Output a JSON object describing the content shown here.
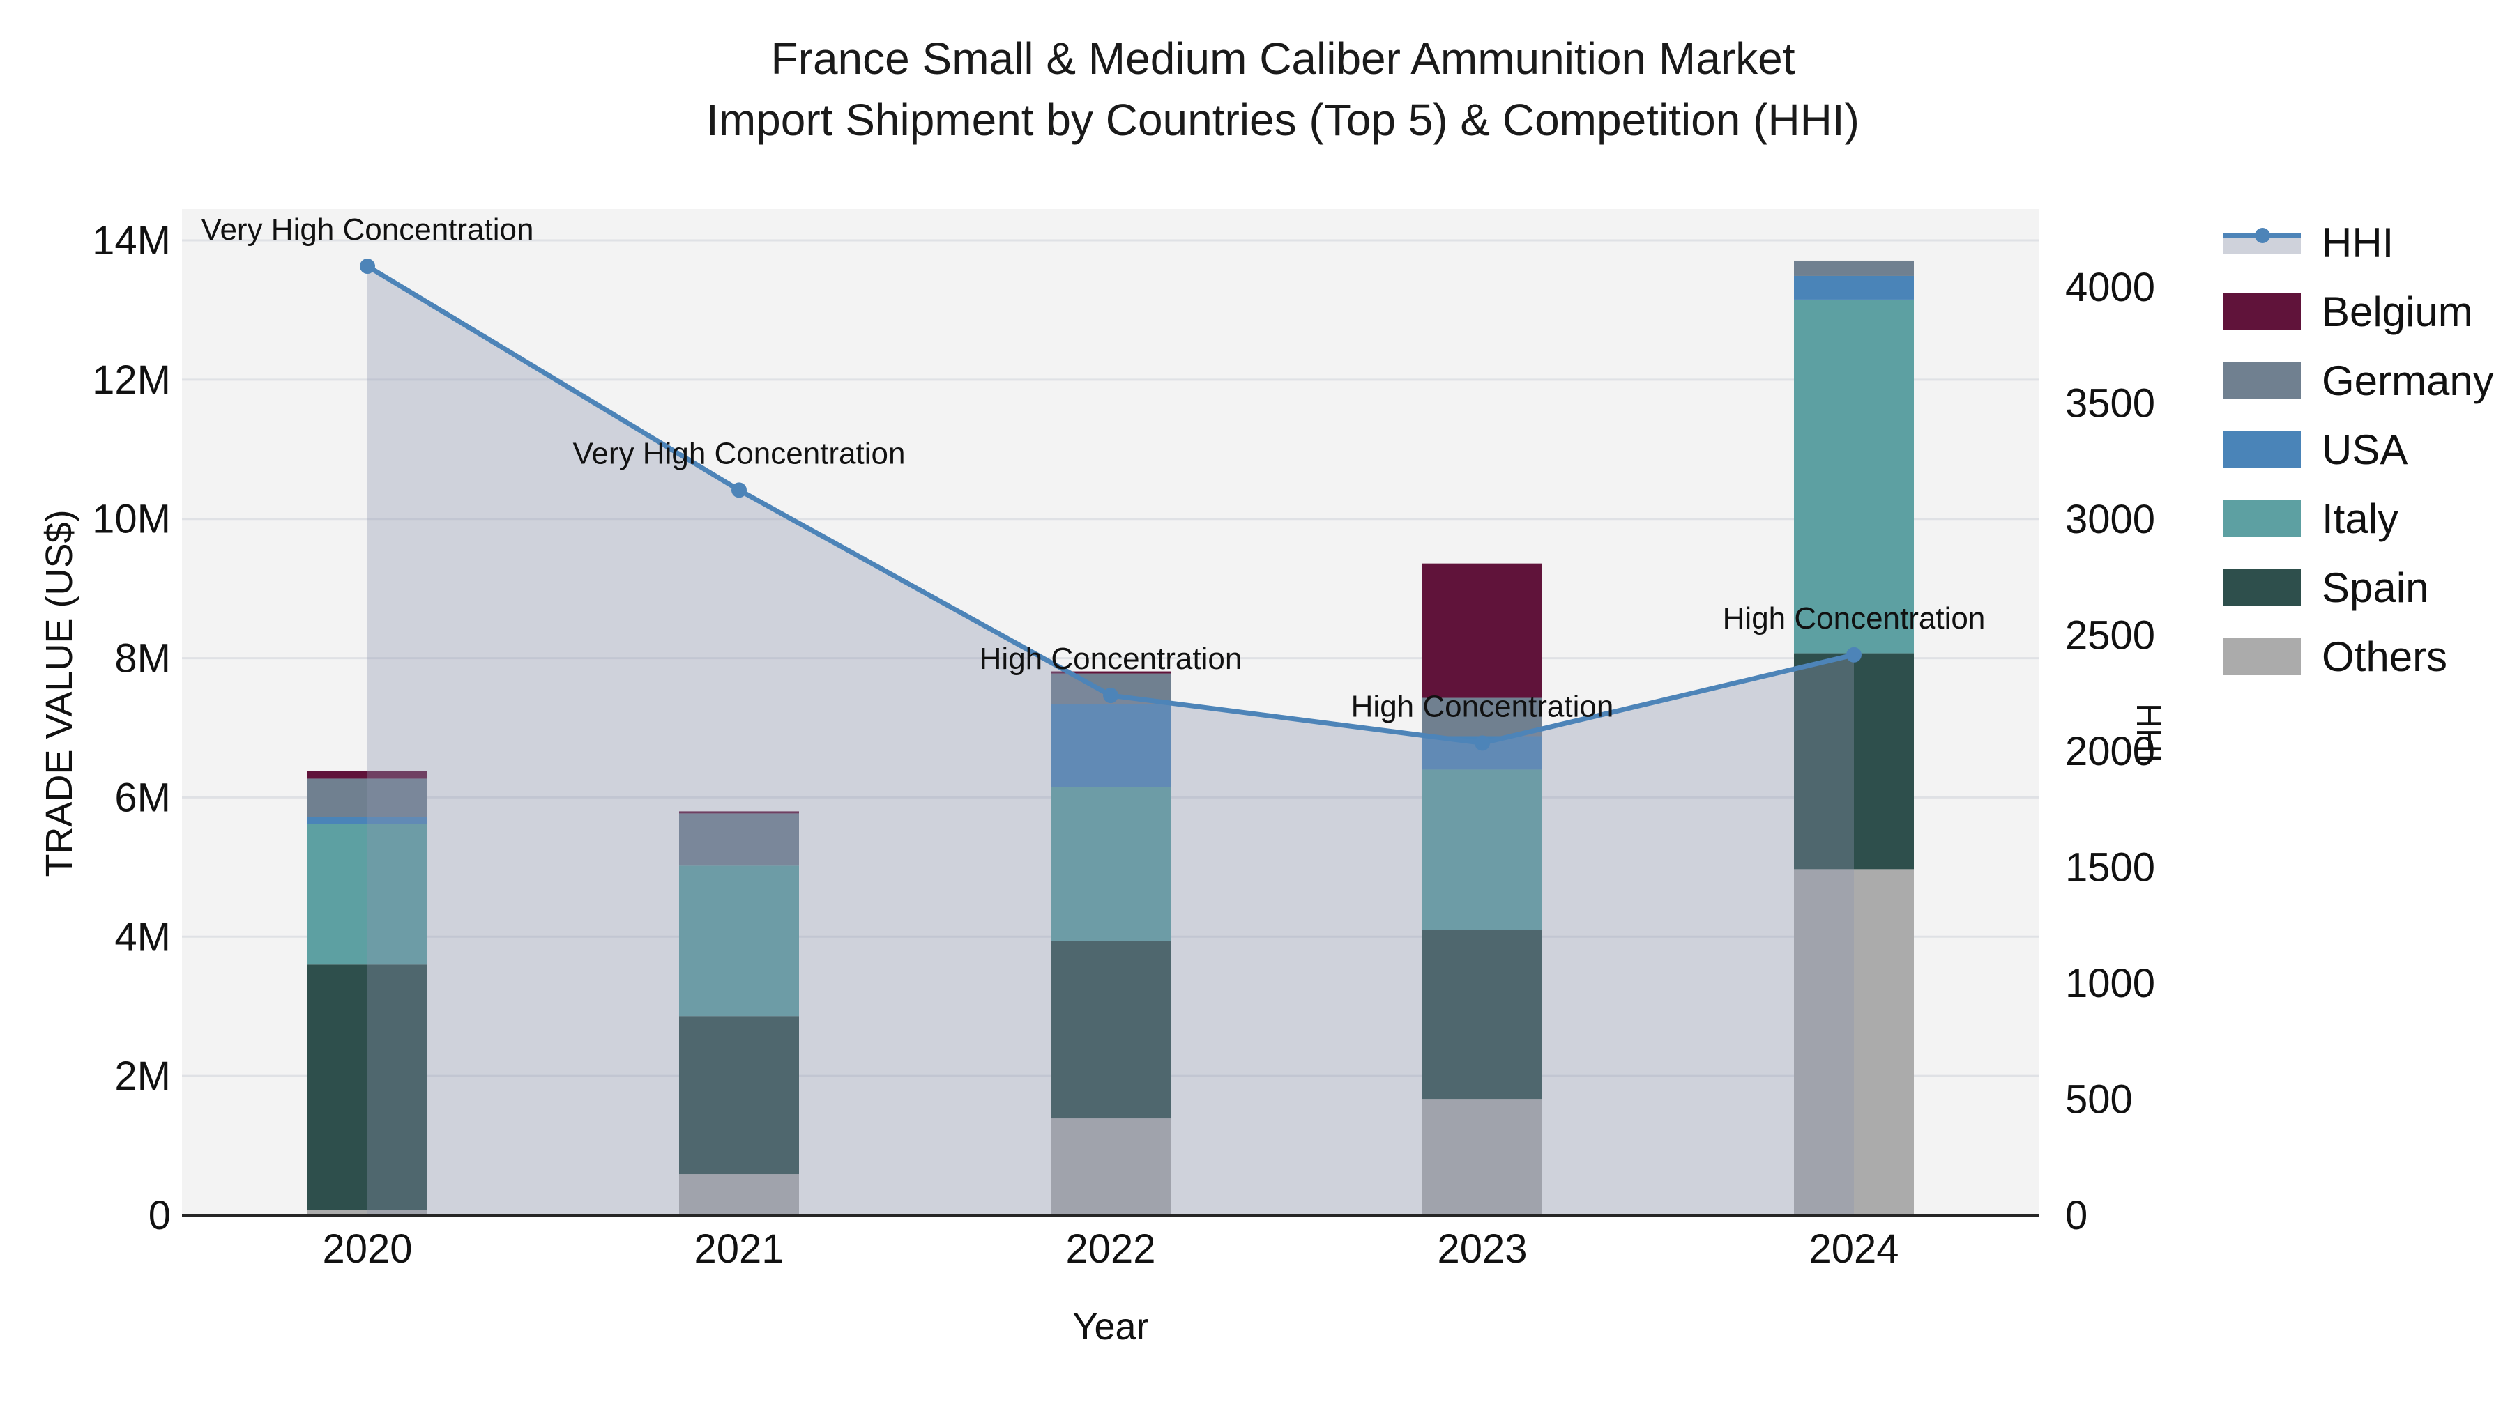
{
  "title": {
    "line1": "France Small & Medium Caliber Ammunition Market",
    "line2": "Import Shipment by Countries (Top 5) & Competition (HHI)"
  },
  "axes": {
    "x_title": "Year",
    "y_left_title": "TRADE VALUE (US$)",
    "y_right_title": "HHI",
    "y_left_ticks": [
      "0",
      "2M",
      "4M",
      "6M",
      "8M",
      "10M",
      "12M",
      "14M"
    ],
    "y_left_tick_values_millions": [
      0,
      2,
      4,
      6,
      8,
      10,
      12,
      14
    ],
    "y_right_ticks": [
      "0",
      "500",
      "1000",
      "1500",
      "2000",
      "2500",
      "3000",
      "3500",
      "4000"
    ],
    "y_right_tick_values": [
      0,
      500,
      1000,
      1500,
      2000,
      2500,
      3000,
      3500,
      4000
    ]
  },
  "chart_data": {
    "type": "bar",
    "subtype": "stacked-bars-with-line-overlay",
    "categories": [
      "2020",
      "2021",
      "2022",
      "2023",
      "2024"
    ],
    "values_unit": "millions US$",
    "stack_order_bottom_to_top": [
      "Others",
      "Spain",
      "Italy",
      "USA",
      "Germany",
      "Belgium"
    ],
    "series": [
      {
        "name": "Belgium",
        "color": "#60133a",
        "values": [
          0.11,
          0.03,
          0.03,
          1.93,
          0
        ]
      },
      {
        "name": "Germany",
        "color": "#708090",
        "values": [
          0.55,
          0.75,
          0.44,
          0.55,
          0.22
        ]
      },
      {
        "name": "USA",
        "color": "#4a84b8",
        "values": [
          0.1,
          0,
          1.19,
          0.48,
          0.34
        ]
      },
      {
        "name": "Italy",
        "color": "#5da0a2",
        "values": [
          2.02,
          2.16,
          2.21,
          2.3,
          5.08
        ]
      },
      {
        "name": "Spain",
        "color": "#2e4f4c",
        "values": [
          3.52,
          2.27,
          2.55,
          2.43,
          3.1
        ]
      },
      {
        "name": "Others",
        "color": "#ababab",
        "values": [
          0.08,
          0.59,
          1.39,
          1.67,
          4.97
        ]
      }
    ],
    "bar_totals_millions": [
      6.38,
      5.8,
      7.81,
      9.36,
      13.71
    ],
    "line_series": {
      "name": "HHI",
      "color": "#4d84b8",
      "area_fill": "rgba(140,150,175,0.35)",
      "values": [
        4090,
        3125,
        2240,
        2035,
        2415
      ],
      "axis": "right"
    },
    "annotations": [
      {
        "category": "2020",
        "text": "Very High Concentration"
      },
      {
        "category": "2021",
        "text": "Very High Concentration"
      },
      {
        "category": "2022",
        "text": "High Concentration"
      },
      {
        "category": "2023",
        "text": "High Concentration"
      },
      {
        "category": "2024",
        "text": "High Concentration"
      }
    ],
    "ylim_left_millions": [
      0,
      14
    ],
    "ylim_right": [
      0,
      4000
    ],
    "grid": "horizontal",
    "plot_background": "#f3f3f3",
    "gridline_color": "#dfe1e5",
    "legend_position": "top-right-outside"
  },
  "legend": {
    "items": [
      {
        "label": "HHI",
        "type": "line",
        "color": "#4d84b8",
        "patch": "#cfd2db"
      },
      {
        "label": "Belgium",
        "type": "swatch",
        "color": "#60133a"
      },
      {
        "label": "Germany",
        "type": "swatch",
        "color": "#708090"
      },
      {
        "label": "USA",
        "type": "swatch",
        "color": "#4a84b8"
      },
      {
        "label": "Italy",
        "type": "swatch",
        "color": "#5da0a2"
      },
      {
        "label": "Spain",
        "type": "swatch",
        "color": "#2e4f4c"
      },
      {
        "label": "Others",
        "type": "swatch",
        "color": "#ababab"
      }
    ]
  }
}
